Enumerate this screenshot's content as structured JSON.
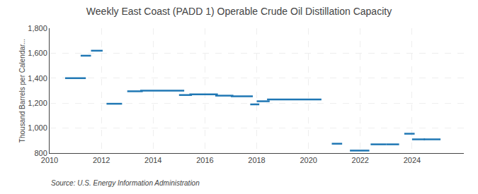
{
  "chart_data": {
    "type": "line",
    "title": "Weekly East Coast (PADD 1) Operable Crude Oil Distillation Capacity",
    "ylabel": "Thousand Barrels per Calendar...",
    "annotations": [
      "Source: U.S. Energy Information Administration"
    ],
    "x_start": [
      2010.6,
      2011.2,
      2011.6,
      2012.2,
      2013.0,
      2013.5,
      2015.0,
      2015.4,
      2016.4,
      2017.0,
      2017.75,
      2018.0,
      2018.4,
      2020.9,
      2021.6,
      2022.4,
      2023.0,
      2023.7,
      2024.0,
      2024.45
    ],
    "x_end": [
      2011.4,
      2011.6,
      2012.05,
      2012.8,
      2013.6,
      2015.2,
      2015.5,
      2016.5,
      2017.1,
      2017.85,
      2018.1,
      2018.5,
      2020.5,
      2021.3,
      2022.35,
      2023.0,
      2023.5,
      2024.1,
      2024.5,
      2025.1
    ],
    "values": [
      1400,
      1580,
      1620,
      1195,
      1295,
      1300,
      1265,
      1270,
      1260,
      1255,
      1190,
      1215,
      1230,
      875,
      820,
      870,
      870,
      955,
      910,
      910
    ],
    "xlim": [
      2010,
      2026
    ],
    "xticks": [
      2010,
      2012,
      2014,
      2016,
      2018,
      2020,
      2022,
      2024
    ],
    "ylim": [
      800,
      1800
    ],
    "yticks": [
      800,
      {
        "value": 1000,
        "label": "1,000"
      },
      {
        "value": 1200,
        "label": "1,200"
      },
      {
        "value": 1400,
        "label": "1,400"
      },
      {
        "value": 1600,
        "label": "1,600"
      },
      {
        "value": 1800,
        "label": "1,800"
      }
    ],
    "grid": true
  }
}
